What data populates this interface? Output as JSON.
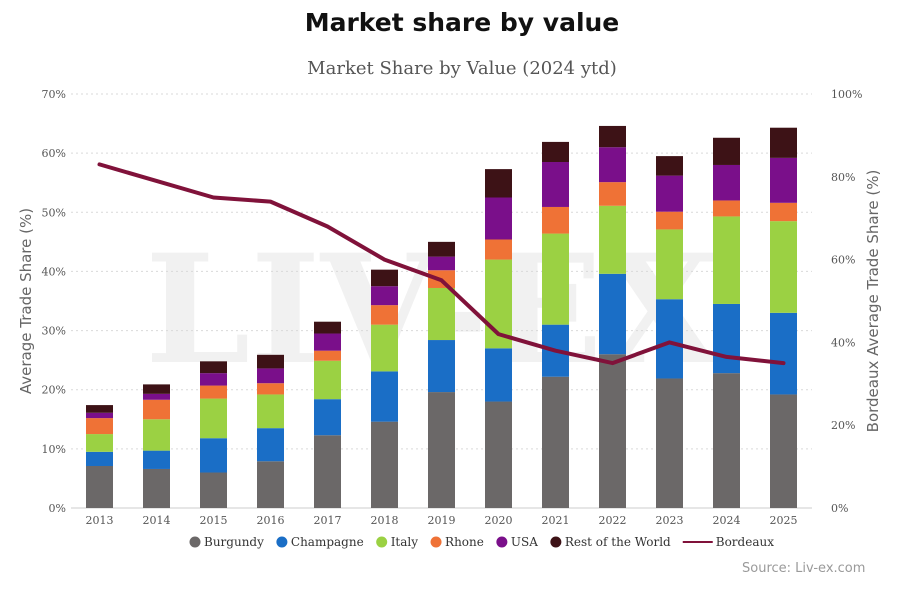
{
  "page": {
    "title": "Market share by value",
    "source": "Source: Liv-ex.com",
    "watermark": "LIV-EX"
  },
  "chart_data": {
    "type": "bar",
    "stacked": true,
    "title": "Market Share by Value (2024 ytd)",
    "ylabel": "Average Trade Share (%)",
    "y2label": "Bordeaux Average Trade Share (%)",
    "ylim": [
      0,
      70
    ],
    "y2lim": [
      0,
      100
    ],
    "yticks": [
      "0%",
      "10%",
      "20%",
      "30%",
      "40%",
      "50%",
      "60%",
      "70%"
    ],
    "y2ticks": [
      "0%",
      "20%",
      "40%",
      "60%",
      "80%",
      "100%"
    ],
    "grid": true,
    "legend_position": "bottom",
    "categories": [
      "2013",
      "2014",
      "2015",
      "2016",
      "2017",
      "2018",
      "2019",
      "2020",
      "2021",
      "2022",
      "2023",
      "2024",
      "2025"
    ],
    "series": [
      {
        "name": "Burgundy",
        "color": "#6b6868",
        "values": [
          7.1,
          6.6,
          6.0,
          7.9,
          12.3,
          14.6,
          19.6,
          18.0,
          22.2,
          26.0,
          21.9,
          22.8,
          19.2
        ]
      },
      {
        "name": "Champagne",
        "color": "#1a6ec6",
        "values": [
          2.4,
          3.1,
          5.8,
          5.6,
          6.1,
          8.5,
          8.8,
          9.0,
          8.8,
          13.6,
          13.4,
          11.7,
          13.8
        ]
      },
      {
        "name": "Italy",
        "color": "#9bd143",
        "values": [
          3.0,
          5.3,
          6.7,
          5.7,
          6.5,
          7.9,
          8.8,
          15.0,
          15.4,
          11.5,
          11.8,
          14.8,
          15.5
        ]
      },
      {
        "name": "Rhone",
        "color": "#ef7236",
        "values": [
          2.7,
          3.3,
          2.2,
          1.9,
          1.7,
          3.3,
          3.0,
          3.4,
          4.5,
          4.0,
          3.0,
          2.7,
          3.1
        ]
      },
      {
        "name": "USA",
        "color": "#7a0f8a",
        "values": [
          0.9,
          1.0,
          2.1,
          2.5,
          2.9,
          3.2,
          2.3,
          7.1,
          7.6,
          5.9,
          6.1,
          6.0,
          7.6
        ]
      },
      {
        "name": "Rest of the World",
        "color": "#3d1216",
        "values": [
          1.3,
          1.6,
          2.0,
          2.3,
          2.0,
          2.8,
          2.5,
          4.8,
          3.4,
          3.6,
          3.3,
          4.6,
          5.1
        ]
      }
    ],
    "line_series": {
      "name": "Bordeaux",
      "color": "#80123a",
      "axis": "right",
      "values": [
        83,
        79,
        75,
        74,
        68,
        60,
        55,
        42,
        38,
        35,
        40,
        36.5,
        35
      ]
    }
  }
}
